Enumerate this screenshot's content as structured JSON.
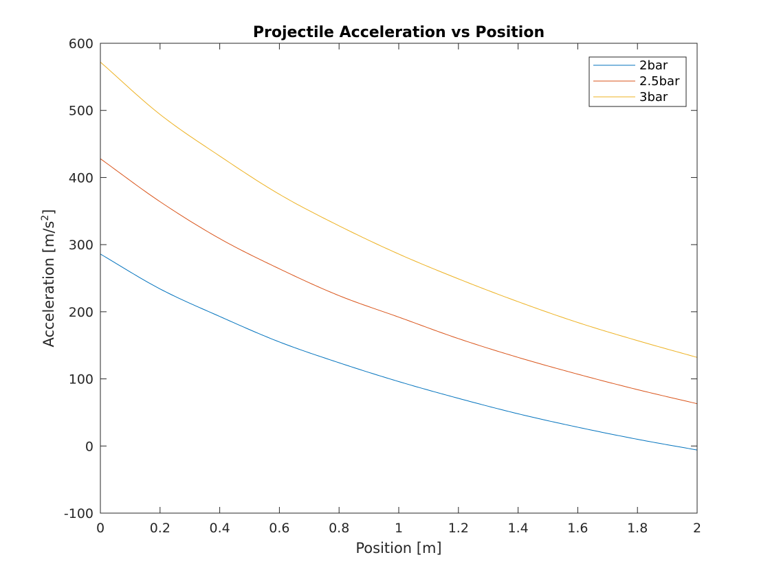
{
  "chart_data": {
    "type": "line",
    "title": "Projectile Acceleration vs Position",
    "xlabel": "Position [m]",
    "ylabel_main": "Acceleration [m/s",
    "ylabel_sup": "2",
    "ylabel_close": "]",
    "xlim": [
      0,
      2
    ],
    "ylim": [
      -100,
      600
    ],
    "xticks": [
      "0",
      "0.2",
      "0.4",
      "0.6",
      "0.8",
      "1",
      "1.2",
      "1.4",
      "1.6",
      "1.8",
      "2"
    ],
    "yticks": [
      "-100",
      "0",
      "100",
      "200",
      "300",
      "400",
      "500",
      "600"
    ],
    "grid": false,
    "legend_position": "top-right",
    "x": [
      0,
      0.2,
      0.4,
      0.6,
      0.8,
      1.0,
      1.2,
      1.4,
      1.6,
      1.8,
      2.0
    ],
    "series": [
      {
        "name": "2bar",
        "color": "#0072BD",
        "values": [
          286,
          234,
          193,
          155,
          124,
          96,
          71,
          48,
          28,
          10,
          -6
        ]
      },
      {
        "name": "2.5bar",
        "color": "#D95319",
        "values": [
          428,
          364,
          309,
          264,
          224,
          192,
          160,
          132,
          107,
          84,
          63
        ]
      },
      {
        "name": "3bar",
        "color": "#EDB120",
        "values": [
          572,
          494,
          432,
          375,
          328,
          286,
          249,
          215,
          184,
          157,
          132
        ]
      }
    ]
  }
}
